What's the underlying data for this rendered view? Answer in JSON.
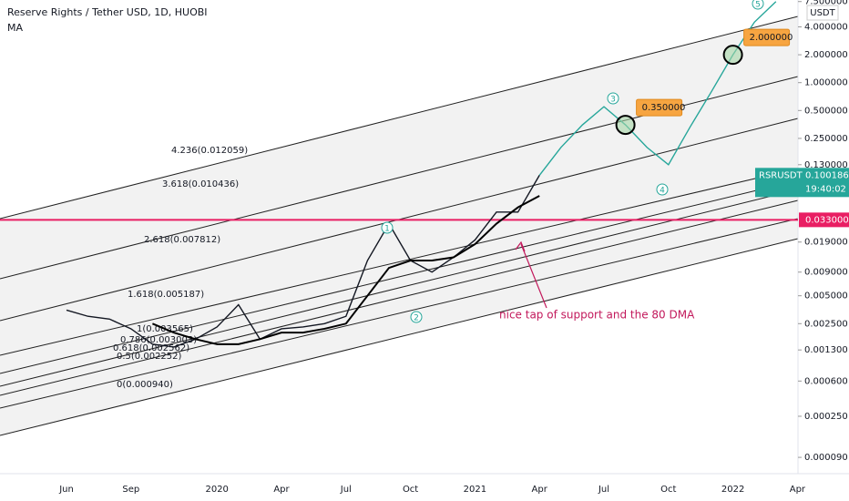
{
  "chart_data": {
    "type": "line",
    "title": "Reserve Rights / Tether USD, 1D, HUOBI",
    "currency": "USDT",
    "log_scale": true,
    "categories": [
      "Jun",
      null,
      null,
      "Sep",
      null,
      null,
      null,
      "2020",
      null,
      null,
      "Apr",
      null,
      null,
      "Jul",
      null,
      null,
      "Oct",
      null,
      null,
      "2021",
      null,
      null,
      "Apr",
      null,
      null,
      "Jul",
      null,
      null,
      "Oct",
      null,
      null,
      "2022",
      null,
      null,
      "Apr"
    ],
    "ylim": [
      6e-05,
      7.8
    ],
    "yticks": [
      {
        "value": 7.5,
        "label": "7.500000"
      },
      {
        "value": 4,
        "label": "4.000000"
      },
      {
        "value": 2,
        "label": "2.000000"
      },
      {
        "value": 1,
        "label": "1.000000"
      },
      {
        "value": 0.5,
        "label": "0.500000"
      },
      {
        "value": 0.25,
        "label": "0.250000"
      },
      {
        "value": 0.13,
        "label": "0.130000"
      },
      {
        "value": 0.019,
        "label": "0.019000"
      },
      {
        "value": 0.009,
        "label": "0.009000"
      },
      {
        "value": 0.005,
        "label": "0.005000"
      },
      {
        "value": 0.0025,
        "label": "0.002500"
      },
      {
        "value": 0.0013,
        "label": "0.001300"
      },
      {
        "value": 0.0006,
        "label": "0.000600"
      },
      {
        "value": 0.00025,
        "label": "0.000250"
      },
      {
        "value": 9e-05,
        "label": "0.000090"
      }
    ],
    "series": [
      {
        "name": "RSRUSDT",
        "color": "#131722",
        "values": [
          0.0035,
          0.003,
          0.0028,
          0.0022,
          0.0015,
          0.0014,
          0.0017,
          0.0023,
          0.004,
          0.0017,
          0.0022,
          0.0023,
          0.0025,
          0.003,
          0.012,
          0.03,
          0.012,
          0.009,
          0.013,
          0.02,
          0.04,
          0.04,
          0.1,
          null,
          null,
          null,
          null,
          null,
          null,
          null,
          null,
          null,
          null,
          null,
          null
        ]
      },
      {
        "name": "MA",
        "color": "#000000",
        "values": [
          null,
          null,
          null,
          null,
          0.0025,
          0.002,
          0.0017,
          0.0015,
          0.0015,
          0.0017,
          0.002,
          0.002,
          0.0022,
          0.0025,
          0.005,
          0.01,
          0.012,
          0.012,
          0.013,
          0.018,
          0.03,
          0.045,
          0.06,
          null,
          null,
          null,
          null,
          null,
          null,
          null,
          null,
          null,
          null,
          null,
          null
        ]
      },
      {
        "color": "#26a69a",
        "values": [
          null,
          null,
          null,
          null,
          null,
          null,
          null,
          null,
          null,
          null,
          null,
          null,
          null,
          null,
          null,
          null,
          null,
          null,
          null,
          null,
          null,
          null,
          0.1,
          0.2,
          0.35,
          0.55,
          0.35,
          0.2,
          0.13,
          0.33,
          0.8,
          2,
          4.5,
          7.5,
          null
        ]
      }
    ],
    "last_price": 0.100186,
    "countdown": "19:40:02",
    "hline": {
      "value": 0.033,
      "label": "0.033000",
      "color": "#e91e63"
    },
    "targets": [
      {
        "value": 0.35,
        "label": "0.350000"
      },
      {
        "value": 2,
        "label": "2.000000"
      }
    ],
    "fib_labels": [
      "4.236(0.012059)",
      "3.618(0.010436)",
      "2.618(0.007812)",
      "1.618(0.005187)",
      "1(0.003565)",
      "0.786(0.003003)",
      "0.618(0.002562)",
      "0.5(0.002252)",
      "0(0.000940)"
    ],
    "wave_labels": [
      "1",
      "2",
      "3",
      "4",
      "5"
    ],
    "annotation": "nice tap of support and the 80 DMA"
  }
}
